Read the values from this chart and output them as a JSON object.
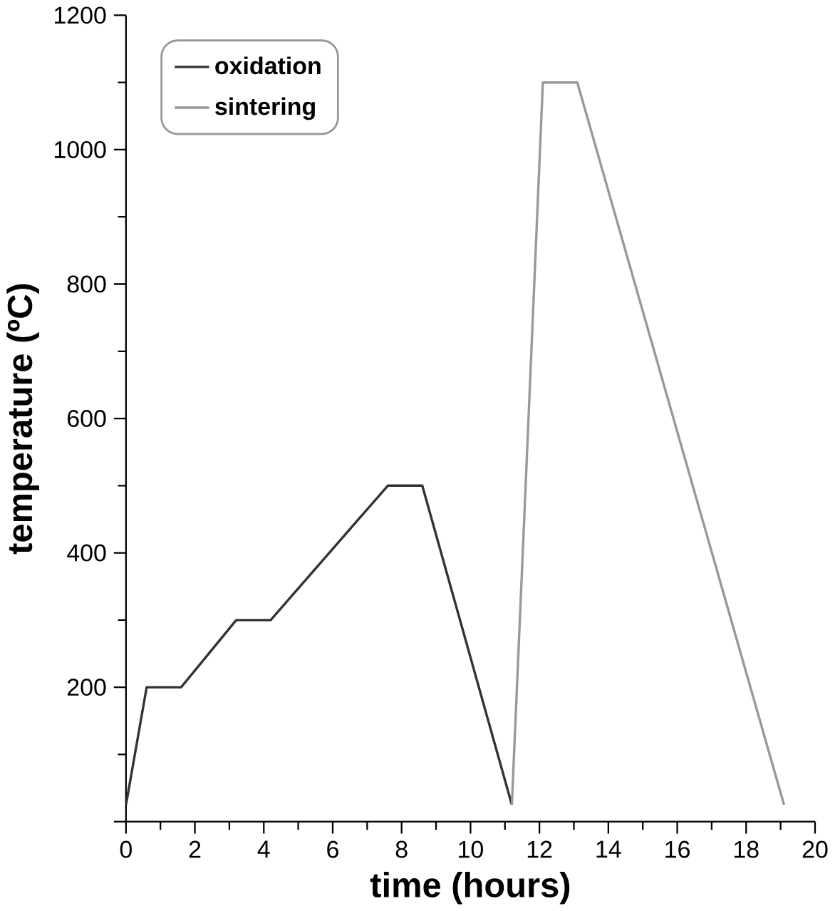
{
  "chart_data": {
    "type": "line",
    "xlabel": "time (hours)",
    "ylabel": "temperature (ºC)",
    "xlim": [
      0,
      20
    ],
    "ylim": [
      0,
      1200
    ],
    "xticks": [
      0,
      2,
      4,
      6,
      8,
      10,
      12,
      14,
      16,
      18,
      20
    ],
    "yticks": [
      {
        "value": 0,
        "label": null
      },
      200,
      400,
      600,
      800,
      1000,
      1200
    ],
    "legend": "top left",
    "marker": "none",
    "line_style": "solid",
    "series": [
      {
        "name": "oxidation",
        "color": "#333333",
        "x": [
          0,
          0.6,
          1.6,
          3.2,
          4.2,
          7.6,
          8.6,
          11.2
        ],
        "values": [
          25,
          200,
          200,
          300,
          300,
          500,
          500,
          25
        ]
      },
      {
        "name": "sintering",
        "color": "#999999",
        "x": [
          11.2,
          11.6,
          12.1,
          13.1,
          19.1
        ],
        "values": [
          25,
          500,
          1100,
          1100,
          25
        ]
      }
    ]
  }
}
